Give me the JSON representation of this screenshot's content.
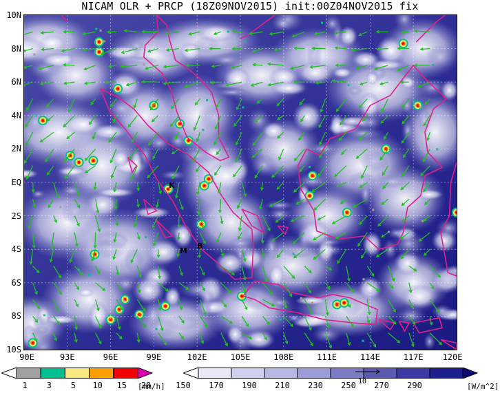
{
  "title": "NICAM OLR + PRCP (18Z09NOV2015) init:00Z04NOV2015 fix",
  "axes": {
    "lat_labels": [
      "10N",
      "8N",
      "6N",
      "4N",
      "2N",
      "EQ",
      "2S",
      "4S",
      "6S",
      "8S",
      "10S"
    ],
    "lon_labels": [
      "90E",
      "93E",
      "96E",
      "99E",
      "102E",
      "105E",
      "108E",
      "111E",
      "114E",
      "117E",
      "120E"
    ]
  },
  "places": [
    "K",
    "M",
    "B"
  ],
  "precip_colorbar": {
    "labels": [
      "1",
      "3",
      "5",
      "10",
      "15",
      "20"
    ],
    "unit": "[mm/h]",
    "colors": [
      "#ffffff",
      "#a0a0a0",
      "#00c090",
      "#f8e880",
      "#f8a000",
      "#f00000",
      "#e000b0"
    ]
  },
  "olr_colorbar": {
    "labels": [
      "150",
      "170",
      "190",
      "210",
      "230",
      "250",
      "270",
      "290"
    ],
    "unit": "[W/m^2]",
    "vector_ref": "10",
    "colors": [
      "#ffffff",
      "#e8e8f6",
      "#d0d0ee",
      "#b8b8e4",
      "#9c9cd6",
      "#7c7cc6",
      "#5a5ab2",
      "#3a3aa2",
      "#1e1e8e",
      "#0a0a78"
    ]
  },
  "colors": {
    "coast": "#e0208a",
    "wind": "#20c020",
    "ocean_deep": "#1c1c8a",
    "cloud": "#ffffff"
  }
}
